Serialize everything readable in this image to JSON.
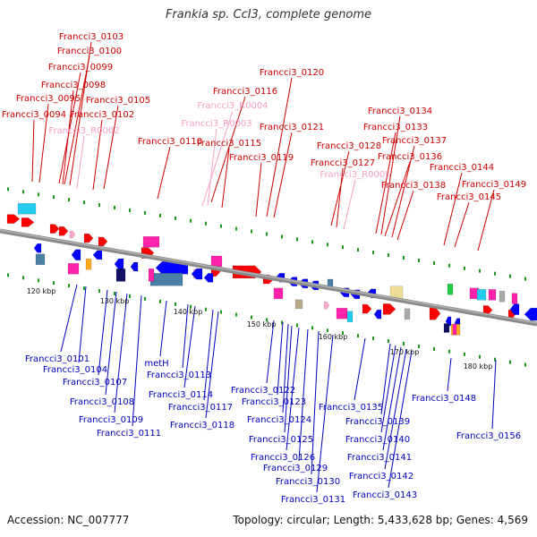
{
  "title": "Frankia sp. CcI3, complete genome",
  "accession": "Accession: NC_007777",
  "topology": "Topology: circular; Length: 5,433,628 bp; Genes: 4,569",
  "colors": {
    "top_label": "#cc0000",
    "pseudo_label": "#f4a0c8",
    "bottom_label": "#0000bb",
    "backbone": "#8a8a8a"
  },
  "ticks": [
    "120 kbp",
    "130 kbp",
    "140 kbp",
    "150 kbp",
    "160 kbp",
    "170 kbp",
    "180 kbp"
  ],
  "top_labels": [
    "Francci3_0103",
    "Francci3_0100",
    "Francci3_0099",
    "Francci3_0098",
    "Francci3_0095",
    "Francci3_0105",
    "Francci3_0094",
    "Francci3_0102",
    "Francci3_R0002",
    "Francci3_0110",
    "Francci3_0116",
    "Francci3_R0004",
    "Francci3_R0003",
    "Francci3_0115",
    "Francci3_0120",
    "Francci3_0121",
    "Francci3_0119",
    "Francci3_0128",
    "Francci3_0127",
    "Francci3_R0005",
    "Francci3_0134",
    "Francci3_0133",
    "Francci3_0137",
    "Francci3_0136",
    "Francci3_0138",
    "Francci3_0144",
    "Francci3_0149",
    "Francci3_0145"
  ],
  "bottom_labels": [
    "Francci3_0101",
    "Francci3_0104",
    "Francci3_0107",
    "Francci3_0108",
    "Francci3_0109",
    "Francci3_0111",
    "metH",
    "Francci3_0113",
    "Francci3_0114",
    "Francci3_0117",
    "Francci3_0118",
    "Francci3_0122",
    "Francci3_0123",
    "Francci3_0124",
    "Francci3_0125",
    "Francci3_0126",
    "Francci3_0129",
    "Francci3_0130",
    "Francci3_0131",
    "Francci3_0135",
    "Francci3_0139",
    "Francci3_0140",
    "Francci3_0141",
    "Francci3_0142",
    "Francci3_0143",
    "Francci3_0148",
    "Francci3_0156"
  ]
}
